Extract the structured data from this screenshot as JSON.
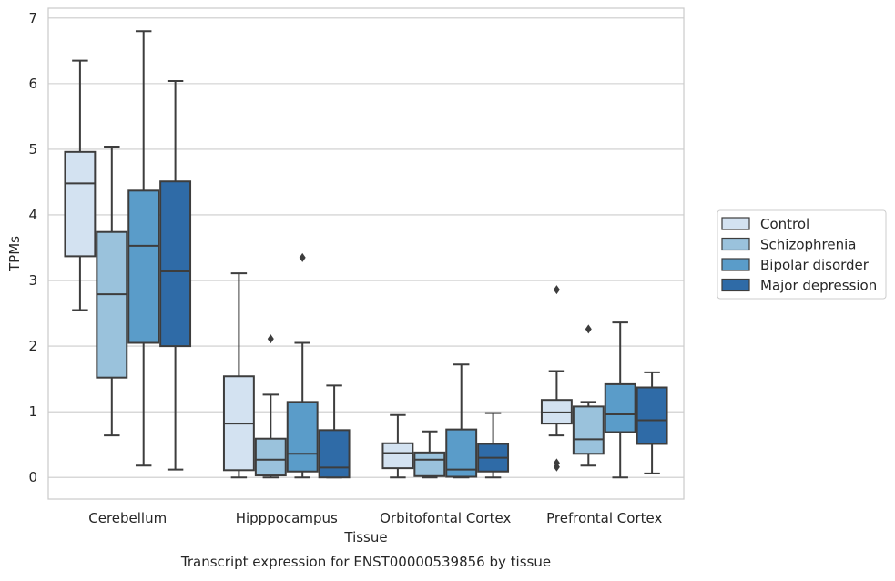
{
  "chart_data": {
    "type": "box",
    "xlabel": "Tissue",
    "ylabel": "TPMs",
    "caption": "Transcript expression for ENST00000539856 by tissue",
    "ylim": [
      -0.33,
      7.15
    ],
    "yticks": [
      "0",
      "1",
      "2",
      "3",
      "4",
      "5",
      "6",
      "7"
    ],
    "grid": "horizontal",
    "legend_position": "right",
    "categories": [
      "Cerebellum",
      "Hipppocampus",
      "Orbitofontal Cortex",
      "Prefrontal Cortex"
    ],
    "series": [
      {
        "name": "Control",
        "color": "#d3e2f1",
        "boxes": [
          {
            "min": 2.55,
            "q1": 3.37,
            "median": 4.48,
            "q3": 4.96,
            "max": 6.35,
            "outliers": []
          },
          {
            "min": 0.0,
            "q1": 0.11,
            "median": 0.82,
            "q3": 1.54,
            "max": 3.11,
            "outliers": []
          },
          {
            "min": 0.0,
            "q1": 0.14,
            "median": 0.37,
            "q3": 0.52,
            "max": 0.95,
            "outliers": []
          },
          {
            "min": 0.64,
            "q1": 0.82,
            "median": 0.99,
            "q3": 1.18,
            "max": 1.62,
            "outliers": [
              0.16,
              0.22,
              2.86
            ]
          }
        ]
      },
      {
        "name": "Schizophrenia",
        "color": "#9ac2dc",
        "boxes": [
          {
            "min": 0.64,
            "q1": 1.52,
            "median": 2.79,
            "q3": 3.74,
            "max": 5.04,
            "outliers": []
          },
          {
            "min": 0.0,
            "q1": 0.03,
            "median": 0.27,
            "q3": 0.59,
            "max": 1.26,
            "outliers": [
              2.11
            ]
          },
          {
            "min": 0.0,
            "q1": 0.02,
            "median": 0.27,
            "q3": 0.38,
            "max": 0.7,
            "outliers": []
          },
          {
            "min": 0.18,
            "q1": 0.36,
            "median": 0.58,
            "q3": 1.08,
            "max": 1.15,
            "outliers": [
              2.26
            ]
          }
        ]
      },
      {
        "name": "Bipolar disorder",
        "color": "#5a9cc9",
        "boxes": [
          {
            "min": 0.18,
            "q1": 2.05,
            "median": 3.53,
            "q3": 4.37,
            "max": 6.8,
            "outliers": []
          },
          {
            "min": 0.0,
            "q1": 0.09,
            "median": 0.36,
            "q3": 1.15,
            "max": 2.05,
            "outliers": [
              3.35
            ]
          },
          {
            "min": 0.0,
            "q1": 0.01,
            "median": 0.12,
            "q3": 0.73,
            "max": 1.72,
            "outliers": []
          },
          {
            "min": 0.0,
            "q1": 0.69,
            "median": 0.96,
            "q3": 1.42,
            "max": 2.36,
            "outliers": []
          }
        ]
      },
      {
        "name": "Major depression",
        "color": "#2f6ba7",
        "boxes": [
          {
            "min": 0.12,
            "q1": 2.0,
            "median": 3.14,
            "q3": 4.51,
            "max": 6.04,
            "outliers": []
          },
          {
            "min": 0.0,
            "q1": 0.0,
            "median": 0.15,
            "q3": 0.72,
            "max": 1.4,
            "outliers": []
          },
          {
            "min": 0.0,
            "q1": 0.09,
            "median": 0.3,
            "q3": 0.51,
            "max": 0.98,
            "outliers": []
          },
          {
            "min": 0.06,
            "q1": 0.51,
            "median": 0.87,
            "q3": 1.37,
            "max": 1.6,
            "outliers": []
          }
        ]
      }
    ]
  }
}
